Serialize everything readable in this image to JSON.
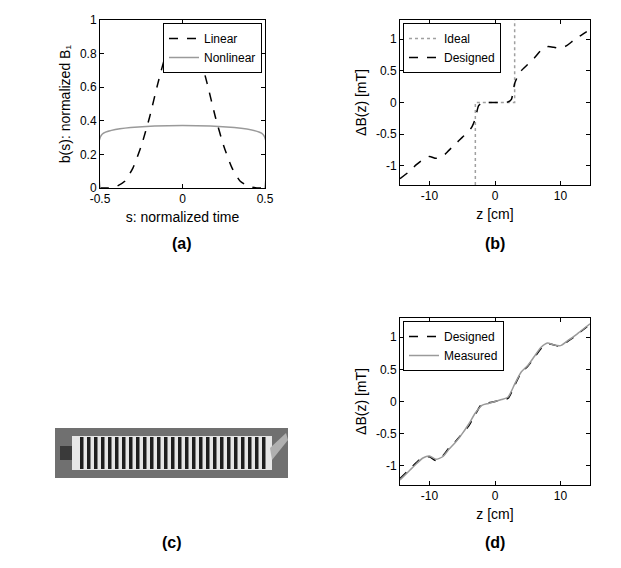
{
  "chart_data": [
    {
      "type": "line",
      "label": "(a)",
      "x_label": "s: normalized time",
      "y_label": "b(s): normalized B₁",
      "x": [
        -0.5,
        -0.45,
        -0.4,
        -0.35,
        -0.3,
        -0.25,
        -0.2,
        -0.15,
        -0.1,
        -0.05,
        0,
        0.05,
        0.1,
        0.15,
        0.2,
        0.25,
        0.3,
        0.35,
        0.4,
        0.45,
        0.5
      ],
      "series": [
        {
          "name": "Linear",
          "color": "#000000",
          "line_style": "dashed",
          "values": [
            0,
            0,
            0.01,
            0.04,
            0.12,
            0.25,
            0.42,
            0.62,
            0.8,
            0.93,
            0.97,
            0.93,
            0.8,
            0.62,
            0.42,
            0.25,
            0.12,
            0.04,
            0.01,
            0,
            0
          ]
        },
        {
          "name": "Nonlinear",
          "color": "#9a9a9a",
          "line_style": "solid",
          "x": [
            -0.5,
            -0.487,
            0.487,
            0.5
          ],
          "values": [
            0,
            0.32,
            0.32,
            0
          ]
        }
      ],
      "xlim": [
        -0.5,
        0.5
      ],
      "xticks": [
        -0.5,
        0,
        0.5
      ],
      "ylim": [
        0,
        1
      ],
      "yticks": [
        0,
        0.2,
        0.4,
        0.6,
        0.8,
        1
      ],
      "grid": false,
      "legend": "upper right"
    },
    {
      "type": "line",
      "label": "(b)",
      "x_label": "z [cm]",
      "y_label": "ΔB(z) [mT]",
      "x": [
        -14.5,
        -13,
        -12,
        -11,
        -10,
        -9,
        -8,
        -7,
        -6,
        -5,
        -4,
        -3.5,
        -3,
        -2.5,
        -2,
        -1,
        0,
        1,
        2,
        2.5,
        3,
        3.5,
        4,
        5,
        6,
        7,
        8,
        9,
        10,
        11,
        12,
        13,
        14.5
      ],
      "series": [
        {
          "name": "Ideal",
          "color": "#a0a0a0",
          "line_style": "dotted",
          "x": [
            -3,
            -3,
            3,
            3
          ],
          "values": [
            -1.3,
            0,
            0,
            1.3
          ]
        },
        {
          "name": "Designed",
          "color": "#000000",
          "line_style": "dashed",
          "values": [
            -1.2,
            -1.08,
            -0.98,
            -0.9,
            -0.85,
            -0.88,
            -0.85,
            -0.75,
            -0.65,
            -0.55,
            -0.45,
            -0.38,
            -0.25,
            -0.05,
            -0.01,
            0,
            0,
            0,
            0.01,
            0.05,
            0.3,
            0.42,
            0.5,
            0.6,
            0.7,
            0.82,
            0.88,
            0.87,
            0.85,
            0.9,
            0.98,
            1.05,
            1.15
          ]
        }
      ],
      "xlim": [
        -14.5,
        14.5
      ],
      "xticks": [
        -10,
        0,
        10
      ],
      "ylim": [
        -1.3,
        1.3
      ],
      "yticks": [
        -1,
        -0.5,
        0,
        0.5,
        1
      ],
      "grid": false,
      "legend": "upper left"
    },
    {
      "type": "line",
      "label": "(d)",
      "x_label": "z [cm]",
      "y_label": "ΔB(z) [mT]",
      "x": [
        -14.5,
        -13,
        -12,
        -11,
        -10,
        -9,
        -8,
        -7,
        -6,
        -5,
        -4,
        -3,
        -2,
        -1,
        0,
        1,
        2,
        3,
        4,
        5,
        6,
        7,
        8,
        9,
        10,
        11,
        12,
        13,
        14.5
      ],
      "series": [
        {
          "name": "Designed",
          "color": "#000000",
          "line_style": "dashed",
          "values": [
            -1.2,
            -1.05,
            -0.95,
            -0.87,
            -0.86,
            -0.92,
            -0.85,
            -0.72,
            -0.62,
            -0.5,
            -0.38,
            -0.2,
            -0.04,
            -0.02,
            0,
            0.02,
            0.05,
            0.25,
            0.45,
            0.55,
            0.68,
            0.82,
            0.9,
            0.88,
            0.86,
            0.93,
            1.0,
            1.08,
            1.2
          ]
        },
        {
          "name": "Measured",
          "color": "#9a9a9a",
          "line_style": "solid",
          "values": [
            -1.22,
            -1.07,
            -0.97,
            -0.88,
            -0.85,
            -0.9,
            -0.86,
            -0.74,
            -0.63,
            -0.5,
            -0.35,
            -0.18,
            -0.06,
            -0.03,
            0,
            0.03,
            0.07,
            0.27,
            0.46,
            0.56,
            0.7,
            0.84,
            0.91,
            0.88,
            0.87,
            0.94,
            1.01,
            1.09,
            1.21
          ]
        }
      ],
      "xlim": [
        -14.5,
        14.5
      ],
      "xticks": [
        -10,
        0,
        10
      ],
      "ylim": [
        -1.3,
        1.3
      ],
      "yticks": [
        -1,
        -0.5,
        0,
        0.5,
        1
      ],
      "grid": false,
      "legend": "upper left"
    }
  ],
  "image_panel": {
    "label": "(c)"
  }
}
